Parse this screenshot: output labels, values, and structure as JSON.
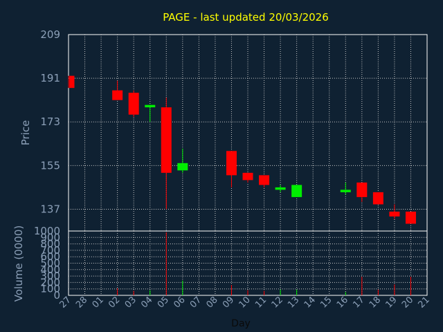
{
  "chart_data": {
    "type": "candlestick",
    "title": "PAGE - last updated 20/03/2026",
    "xlabel": "Day",
    "ylabel_price": "Price",
    "ylabel_volume": "Volume (0000)",
    "price_ylim": [
      128,
      209
    ],
    "price_ticks": [
      "209",
      "191",
      "173",
      "155",
      "137"
    ],
    "volume_ylim": [
      0,
      1000
    ],
    "volume_ticks": [
      "1000",
      "900",
      "800",
      "700",
      "600",
      "500",
      "400",
      "300",
      "200",
      "100",
      "0"
    ],
    "x_ticks": [
      "27",
      "28",
      "01",
      "02",
      "03",
      "04",
      "05",
      "06",
      "07",
      "08",
      "09",
      "10",
      "11",
      "12",
      "13",
      "14",
      "15",
      "16",
      "17",
      "18",
      "19",
      "20",
      "21"
    ],
    "grid": true,
    "colors": {
      "up": "#00ee00",
      "down": "#ff0000",
      "background": "#0f2132",
      "text": "#8ca0b8",
      "title": "#ffff00"
    },
    "candles": [
      {
        "day": "27",
        "open": 192,
        "close": 187,
        "high": 192,
        "low": 187,
        "volume": 0
      },
      {
        "day": "02",
        "open": 186,
        "close": 182,
        "high": 190,
        "low": 182,
        "volume": 110
      },
      {
        "day": "03",
        "open": 185,
        "close": 176,
        "high": 186,
        "low": 175,
        "volume": 70
      },
      {
        "day": "04",
        "open": 179,
        "close": 180,
        "high": 180,
        "low": 173,
        "volume": 80
      },
      {
        "day": "05",
        "open": 179,
        "close": 152,
        "high": 183,
        "low": 137,
        "volume": 980
      },
      {
        "day": "06",
        "open": 153,
        "close": 156,
        "high": 162,
        "low": 152,
        "volume": 230
      },
      {
        "day": "09",
        "open": 161,
        "close": 151,
        "high": 161,
        "low": 146,
        "volume": 160
      },
      {
        "day": "10",
        "open": 152,
        "close": 149,
        "high": 152,
        "low": 148,
        "volume": 80
      },
      {
        "day": "11",
        "open": 151,
        "close": 147,
        "high": 151,
        "low": 146,
        "volume": 70
      },
      {
        "day": "12",
        "open": 145,
        "close": 146,
        "high": 147,
        "low": 144,
        "volume": 90
      },
      {
        "day": "13",
        "open": 142,
        "close": 147,
        "high": 147,
        "low": 142,
        "volume": 90
      },
      {
        "day": "16",
        "open": 144,
        "close": 145,
        "high": 148,
        "low": 143,
        "volume": 50
      },
      {
        "day": "17",
        "open": 148,
        "close": 142,
        "high": 148,
        "low": 140,
        "volume": 290
      },
      {
        "day": "18",
        "open": 144,
        "close": 139,
        "high": 144,
        "low": 139,
        "volume": 90
      },
      {
        "day": "19",
        "open": 136,
        "close": 134,
        "high": 139,
        "low": 133,
        "volume": 170
      },
      {
        "day": "20",
        "open": 136,
        "close": 131,
        "high": 136,
        "low": 131,
        "volume": 290
      }
    ]
  }
}
